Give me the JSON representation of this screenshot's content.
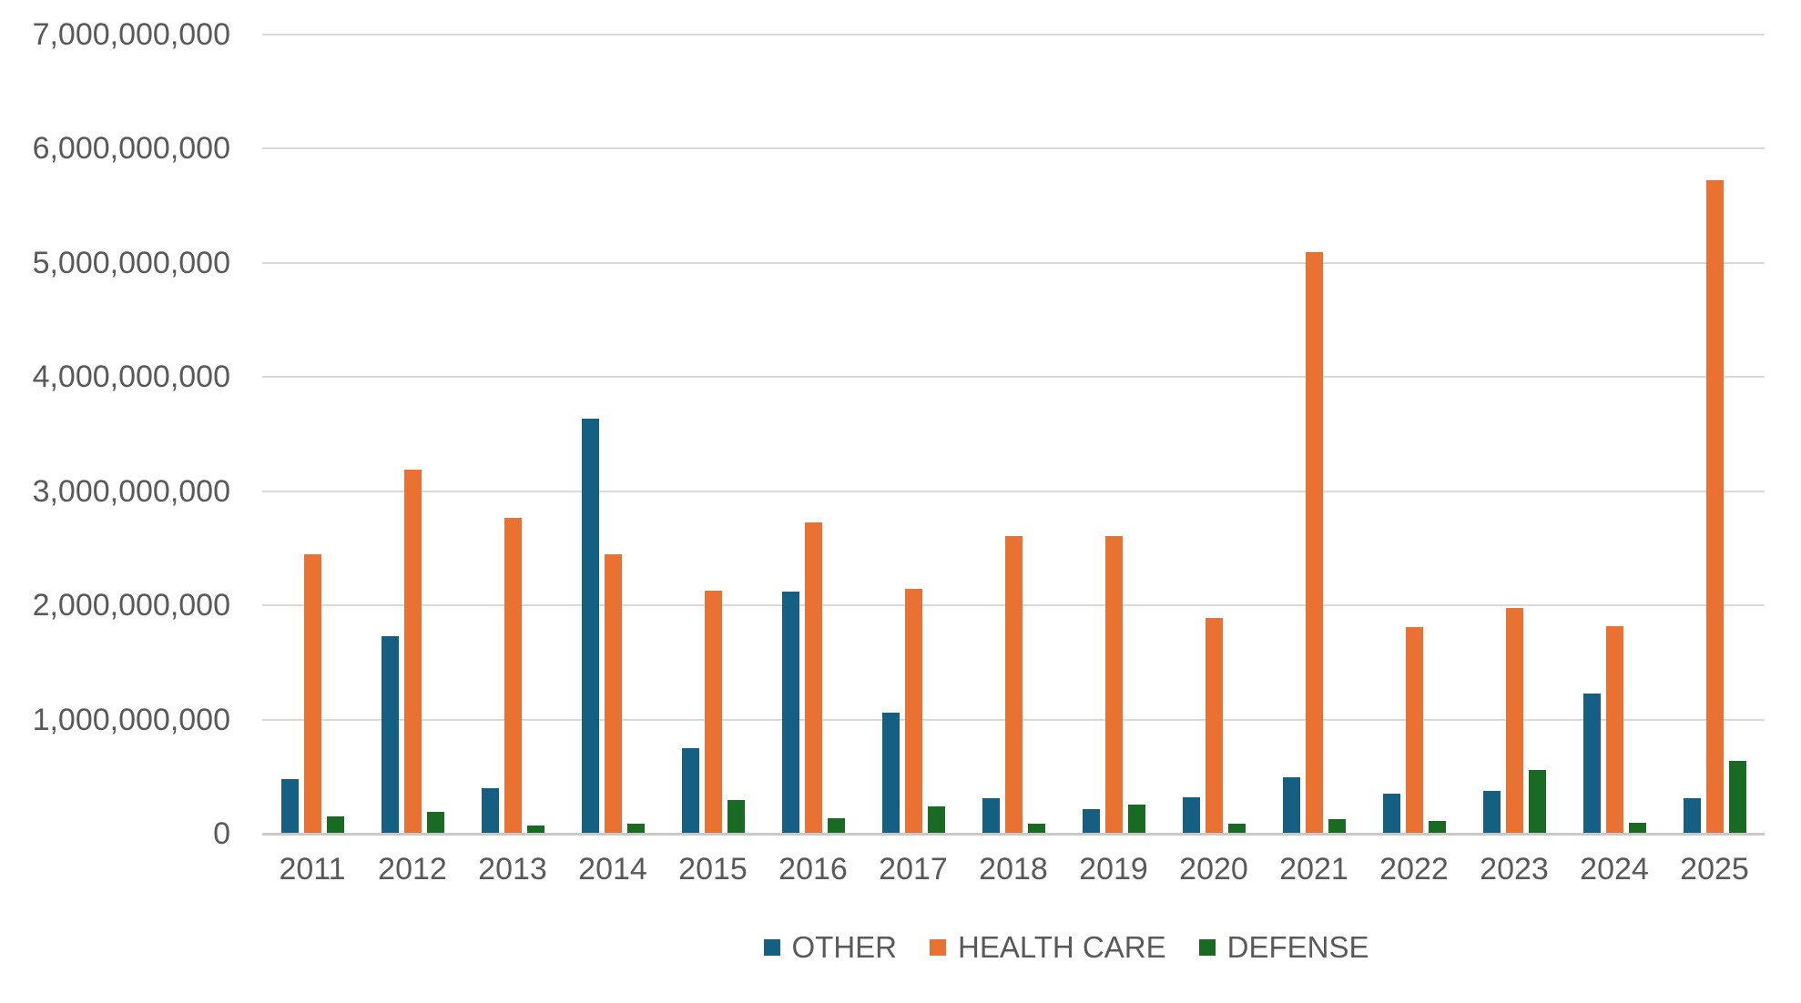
{
  "chart_data": {
    "type": "bar",
    "title": "",
    "categories": [
      "2011",
      "2012",
      "2013",
      "2014",
      "2015",
      "2016",
      "2017",
      "2018",
      "2019",
      "2020",
      "2021",
      "2022",
      "2023",
      "2024",
      "2025"
    ],
    "series": [
      {
        "name": "OTHER",
        "color": "#156082",
        "values": [
          470000000,
          1720000000,
          390000000,
          3630000000,
          740000000,
          2110000000,
          1050000000,
          300000000,
          210000000,
          310000000,
          490000000,
          340000000,
          370000000,
          1220000000,
          300000000
        ]
      },
      {
        "name": "HEALTH CARE",
        "color": "#E97132",
        "values": [
          2440000000,
          3180000000,
          2760000000,
          2440000000,
          2120000000,
          2720000000,
          2140000000,
          2600000000,
          2600000000,
          1880000000,
          5090000000,
          1800000000,
          1970000000,
          1810000000,
          5720000000
        ]
      },
      {
        "name": "DEFENSE",
        "color": "#196B24",
        "values": [
          140000000,
          180000000,
          60000000,
          80000000,
          290000000,
          130000000,
          230000000,
          80000000,
          250000000,
          80000000,
          120000000,
          100000000,
          550000000,
          90000000,
          630000000
        ]
      }
    ],
    "ylim": [
      0,
      7000000000
    ],
    "y_tick_step": 1000000000,
    "y_tick_labels": [
      "0",
      "1,000,000,000",
      "2,000,000,000",
      "3,000,000,000",
      "4,000,000,000",
      "5,000,000,000",
      "6,000,000,000",
      "7,000,000,000"
    ],
    "grid": true,
    "legend_position": "bottom",
    "legend_labels": [
      "OTHER",
      "HEALTH CARE",
      "DEFENSE"
    ]
  },
  "colors": {
    "text": "#595959",
    "gridline": "#D9D9D9",
    "axis_line": "#C9C9C9",
    "background": "#FFFFFF",
    "series_other": "#156082",
    "series_health_care": "#E97132",
    "series_defense": "#196B24"
  }
}
